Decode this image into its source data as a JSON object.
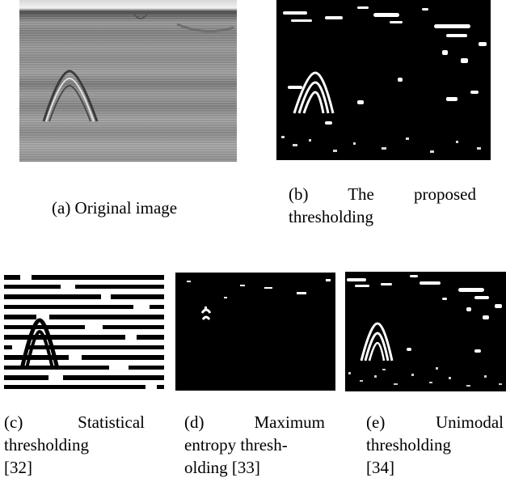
{
  "figure": {
    "panels": [
      {
        "id": "a",
        "image": "original GPR radargram (grayscale)",
        "caption_lines": [
          "(a) Original image"
        ]
      },
      {
        "id": "b",
        "image": "binary result, proposed thresholding",
        "caption_lines": [
          "(b) The proposed",
          "thresholding"
        ]
      },
      {
        "id": "c",
        "image": "binary result, statistical thresholding",
        "caption_lines": [
          "(c) Statistical",
          "thresholding",
          "[32]"
        ]
      },
      {
        "id": "d",
        "image": "binary result, maximum entropy thresholding",
        "caption_lines": [
          "(d) Maximum",
          "entropy thresh-",
          "olding [33]"
        ]
      },
      {
        "id": "e",
        "image": "binary result, unimodal thresholding",
        "caption_lines": [
          "(e) Unimodal",
          "thresholding",
          "[34]"
        ]
      }
    ]
  }
}
